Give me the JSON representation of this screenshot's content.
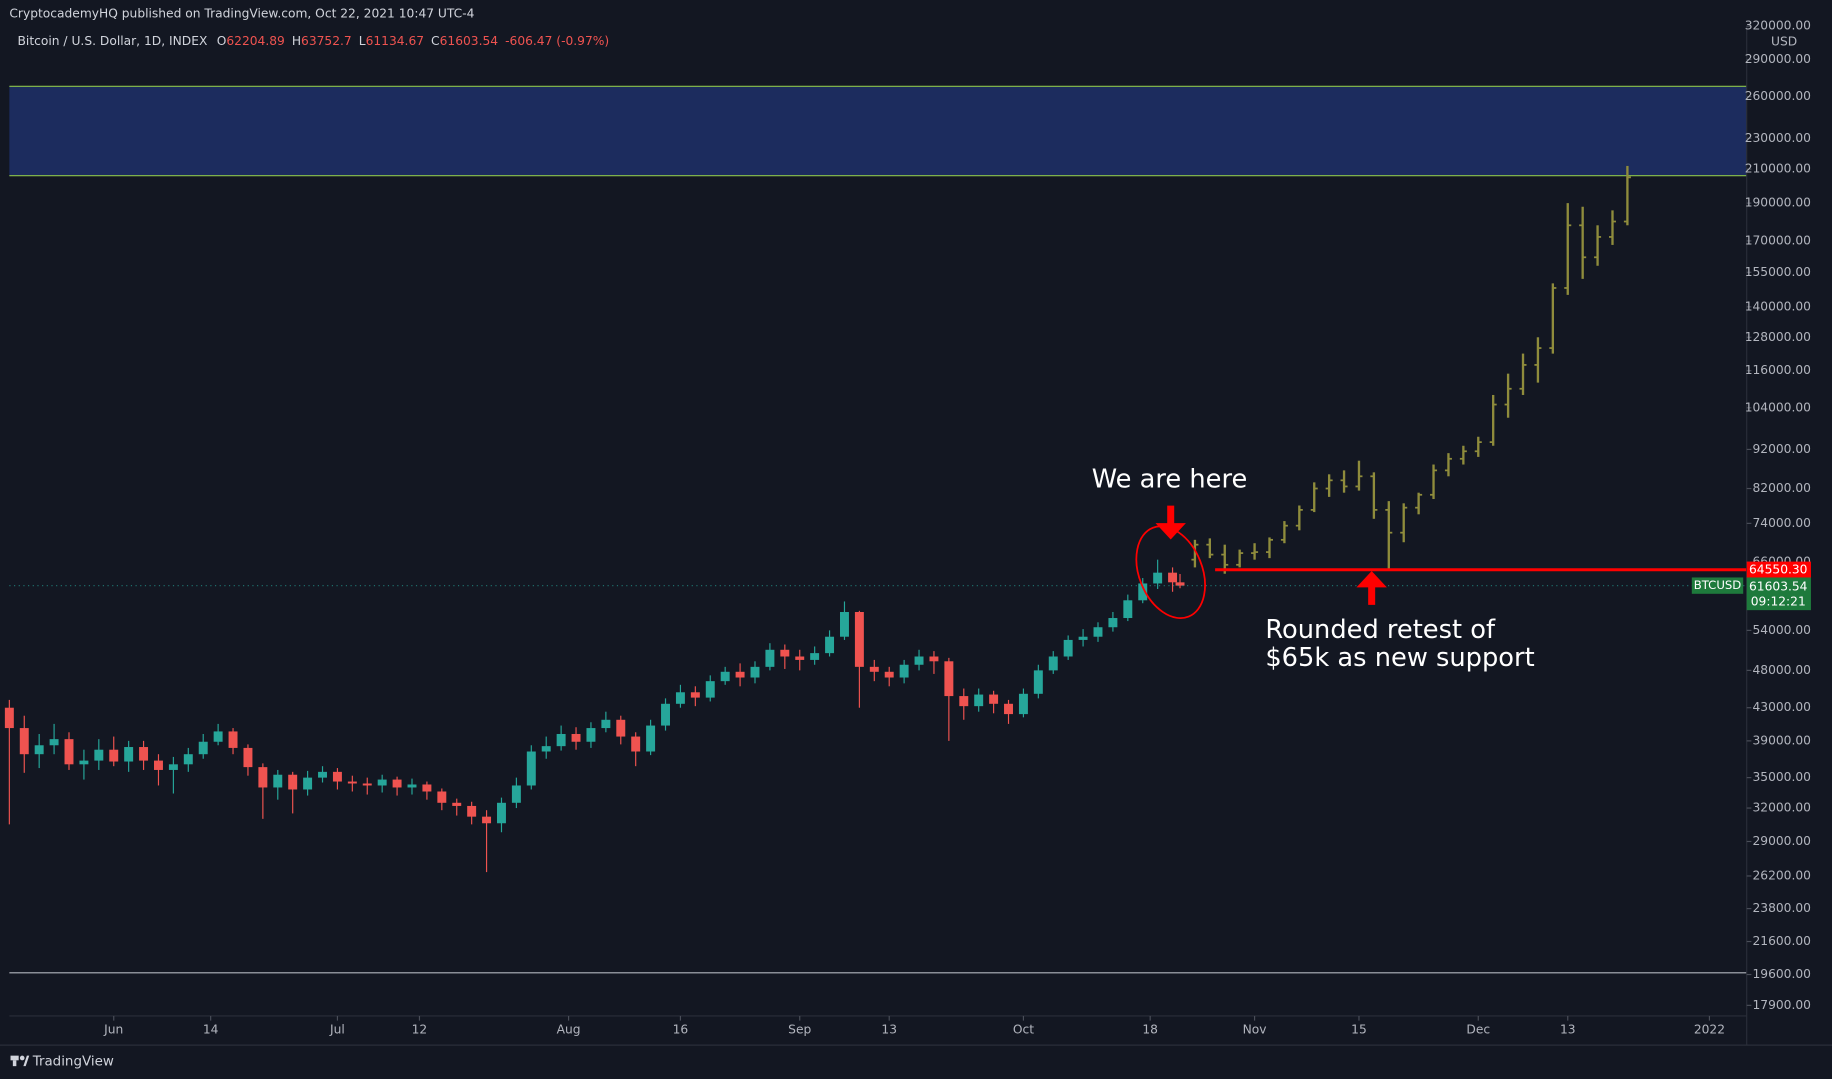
{
  "header": "CryptocademyHQ published on TradingView.com, Oct 22, 2021 10:47 UTC-4",
  "footer": "TradingView",
  "chart_data": {
    "type": "candlestick",
    "symbol": "Bitcoin / U.S. Dollar, 1D, INDEX",
    "legend_keys": [
      "O",
      "H",
      "L",
      "C"
    ],
    "change": "-606.47 (-0.97%)",
    "currency": "USD",
    "ticker": "BTCUSD",
    "countdown": "09:12:21",
    "log_scale": true,
    "grid": false,
    "background": "#131722",
    "xlim": [
      "2021-05-18",
      "2022-01-06"
    ],
    "ylim": [
      17350,
      320400
    ],
    "xticks": [
      {
        "value": "2021-06-01",
        "label": "Jun"
      },
      {
        "value": "2021-06-14",
        "label": "14"
      },
      {
        "value": "2021-07-01",
        "label": "Jul"
      },
      {
        "value": "2021-07-12",
        "label": "12"
      },
      {
        "value": "2021-08-01",
        "label": "Aug"
      },
      {
        "value": "2021-08-16",
        "label": "16"
      },
      {
        "value": "2021-09-01",
        "label": "Sep"
      },
      {
        "value": "2021-09-13",
        "label": "13"
      },
      {
        "value": "2021-10-01",
        "label": "Oct"
      },
      {
        "value": "2021-10-18",
        "label": "18"
      },
      {
        "value": "2021-11-01",
        "label": "Nov"
      },
      {
        "value": "2021-11-15",
        "label": "15"
      },
      {
        "value": "2021-12-01",
        "label": "Dec"
      },
      {
        "value": "2021-12-13",
        "label": "13"
      },
      {
        "value": "2022-01-01",
        "label": "2022"
      }
    ],
    "yticks": [
      {
        "value": 320000,
        "label": "320000.00"
      },
      {
        "value": 290000,
        "label": "290000.00"
      },
      {
        "value": 260000,
        "label": "260000.00"
      },
      {
        "value": 230000,
        "label": "230000.00"
      },
      {
        "value": 210000,
        "label": "210000.00"
      },
      {
        "value": 190000,
        "label": "190000.00"
      },
      {
        "value": 170000,
        "label": "170000.00"
      },
      {
        "value": 155000,
        "label": "155000.00"
      },
      {
        "value": 140000,
        "label": "140000.00"
      },
      {
        "value": 128000,
        "label": "128000.00"
      },
      {
        "value": 116000,
        "label": "116000.00"
      },
      {
        "value": 104000,
        "label": "104000.00"
      },
      {
        "value": 92000,
        "label": "92000.00"
      },
      {
        "value": 82000,
        "label": "82000.00"
      },
      {
        "value": 74000,
        "label": "74000.00"
      },
      {
        "value": 66000,
        "label": "66000.00"
      },
      {
        "value": 54000,
        "label": "54000.00"
      },
      {
        "value": 48000,
        "label": "48000.00"
      },
      {
        "value": 43000,
        "label": "43000.00"
      },
      {
        "value": 39000,
        "label": "39000.00"
      },
      {
        "value": 35000,
        "label": "35000.00"
      },
      {
        "value": 32000,
        "label": "32000.00"
      },
      {
        "value": 29000,
        "label": "29000.00"
      },
      {
        "value": 26200,
        "label": "26200.00"
      },
      {
        "value": 23800,
        "label": "23800.00"
      },
      {
        "value": 21600,
        "label": "21600.00"
      },
      {
        "value": 19600,
        "label": "19600.00"
      },
      {
        "value": 17900,
        "label": "17900.00"
      }
    ],
    "zone": [
      206000,
      268000
    ],
    "zone_color": "#1c2c5e",
    "zone_border_color": "#8bc34a",
    "floor_line": 19700,
    "support": {
      "value": 64550.3,
      "label": "64550.30",
      "color": "#ff0000"
    },
    "annotations": [
      "We are here",
      "Rounded retest of",
      "$65k as new support"
    ],
    "candles": {
      "up_color": "#26a69a",
      "down_color": "#ef5350",
      "x": [
        "2021-05-18",
        "2021-05-20",
        "2021-05-22",
        "2021-05-24",
        "2021-05-26",
        "2021-05-28",
        "2021-05-30",
        "2021-06-01",
        "2021-06-03",
        "2021-06-05",
        "2021-06-07",
        "2021-06-09",
        "2021-06-11",
        "2021-06-13",
        "2021-06-15",
        "2021-06-17",
        "2021-06-19",
        "2021-06-21",
        "2021-06-23",
        "2021-06-25",
        "2021-06-27",
        "2021-06-29",
        "2021-07-01",
        "2021-07-03",
        "2021-07-05",
        "2021-07-07",
        "2021-07-09",
        "2021-07-11",
        "2021-07-13",
        "2021-07-15",
        "2021-07-17",
        "2021-07-19",
        "2021-07-21",
        "2021-07-23",
        "2021-07-25",
        "2021-07-27",
        "2021-07-29",
        "2021-07-31",
        "2021-08-02",
        "2021-08-04",
        "2021-08-06",
        "2021-08-08",
        "2021-08-10",
        "2021-08-12",
        "2021-08-14",
        "2021-08-16",
        "2021-08-18",
        "2021-08-20",
        "2021-08-22",
        "2021-08-24",
        "2021-08-26",
        "2021-08-28",
        "2021-08-30",
        "2021-09-01",
        "2021-09-03",
        "2021-09-05",
        "2021-09-07",
        "2021-09-09",
        "2021-09-11",
        "2021-09-13",
        "2021-09-15",
        "2021-09-17",
        "2021-09-19",
        "2021-09-21",
        "2021-09-23",
        "2021-09-25",
        "2021-09-27",
        "2021-09-29",
        "2021-10-01",
        "2021-10-03",
        "2021-10-05",
        "2021-10-07",
        "2021-10-09",
        "2021-10-11",
        "2021-10-13",
        "2021-10-15",
        "2021-10-17",
        "2021-10-19",
        "2021-10-21",
        "2021-10-22"
      ],
      "open": [
        43000,
        40500,
        37500,
        38500,
        39200,
        36400,
        36800,
        38000,
        36700,
        38300,
        36800,
        35800,
        36400,
        37500,
        38900,
        40100,
        38200,
        36100,
        34000,
        35300,
        33800,
        35000,
        35600,
        34600,
        34400,
        34200,
        34800,
        34000,
        34300,
        33600,
        32500,
        32200,
        31200,
        30600,
        32500,
        34200,
        37800,
        38400,
        39800,
        38900,
        40500,
        41500,
        39500,
        37800,
        40800,
        43500,
        45000,
        44300,
        46500,
        47800,
        47000,
        48500,
        51000,
        50000,
        49500,
        50500,
        53000,
        57000,
        48500,
        47800,
        47000,
        48800,
        50000,
        49300,
        44500,
        43200,
        44700,
        43500,
        42200,
        44800,
        48000,
        50000,
        52500,
        53000,
        54500,
        56000,
        59000,
        62000,
        64000,
        62204.89
      ],
      "high": [
        44000,
        42000,
        39800,
        41000,
        40000,
        38000,
        39200,
        39500,
        39000,
        39000,
        37500,
        37200,
        38200,
        39800,
        41000,
        40500,
        38600,
        36500,
        35800,
        35600,
        35700,
        36200,
        36000,
        35200,
        35000,
        35300,
        35100,
        34900,
        34600,
        33900,
        32900,
        32600,
        31800,
        33000,
        35000,
        38500,
        39500,
        40800,
        40600,
        41200,
        42500,
        42000,
        40000,
        41500,
        44200,
        46000,
        45800,
        47300,
        48500,
        49000,
        49300,
        52000,
        51800,
        51000,
        51500,
        54000,
        58800,
        57200,
        49500,
        48500,
        49500,
        51000,
        50800,
        49800,
        45500,
        45500,
        45200,
        44000,
        45500,
        48800,
        50800,
        53200,
        54200,
        55300,
        57000,
        60000,
        63000,
        66500,
        65000,
        63752.7
      ],
      "low": [
        30500,
        35500,
        36000,
        37500,
        35800,
        34800,
        35800,
        36200,
        35600,
        35800,
        34200,
        33400,
        35600,
        37000,
        38500,
        37500,
        35200,
        31000,
        32800,
        31500,
        33200,
        34500,
        33800,
        33600,
        33300,
        33500,
        33200,
        33300,
        32800,
        31800,
        31300,
        30500,
        26500,
        29800,
        32000,
        33800,
        37000,
        37900,
        38000,
        38200,
        40000,
        38600,
        36200,
        37400,
        40200,
        43000,
        43200,
        43800,
        46000,
        45800,
        46200,
        48000,
        48200,
        48000,
        48800,
        50000,
        52500,
        43000,
        46500,
        45800,
        46200,
        48000,
        47500,
        39000,
        41500,
        42500,
        42300,
        41000,
        41800,
        44200,
        47500,
        49500,
        51500,
        52200,
        53800,
        55500,
        58500,
        61000,
        60500,
        61134.67
      ],
      "close": [
        40500,
        37500,
        38500,
        39200,
        36400,
        36800,
        38000,
        36700,
        38300,
        36800,
        35800,
        36400,
        37500,
        38900,
        40100,
        38200,
        36100,
        34000,
        35300,
        33800,
        35000,
        35600,
        34600,
        34400,
        34200,
        34800,
        34000,
        34300,
        33600,
        32500,
        32200,
        31200,
        30600,
        32500,
        34200,
        37800,
        38400,
        39800,
        38900,
        40500,
        41500,
        39500,
        37800,
        40800,
        43500,
        45000,
        44300,
        46500,
        47800,
        47000,
        48500,
        51000,
        50000,
        49500,
        50500,
        53000,
        57000,
        48500,
        47800,
        47000,
        48800,
        50000,
        49300,
        44500,
        43200,
        44700,
        43500,
        42200,
        44800,
        48000,
        50000,
        52500,
        53000,
        54500,
        56000,
        59000,
        62000,
        64000,
        62210.01,
        61603.54
      ]
    },
    "projection": {
      "color": "#8f8c3c",
      "x": [
        "2021-10-24",
        "2021-10-26",
        "2021-10-28",
        "2021-10-30",
        "2021-11-01",
        "2021-11-03",
        "2021-11-05",
        "2021-11-07",
        "2021-11-09",
        "2021-11-11",
        "2021-11-13",
        "2021-11-15",
        "2021-11-17",
        "2021-11-19",
        "2021-11-21",
        "2021-11-23",
        "2021-11-25",
        "2021-11-27",
        "2021-11-29",
        "2021-12-01",
        "2021-12-03",
        "2021-12-05",
        "2021-12-07",
        "2021-12-09",
        "2021-12-11",
        "2021-12-13",
        "2021-12-15",
        "2021-12-17",
        "2021-12-19",
        "2021-12-21"
      ],
      "open": [
        66500,
        69500,
        67500,
        65500,
        67800,
        68000,
        70500,
        73500,
        77000,
        82000,
        84000,
        82500,
        85000,
        77000,
        72000,
        77500,
        80500,
        86500,
        89500,
        91500,
        94000,
        105000,
        110000,
        118000,
        124000,
        148000,
        178000,
        162000,
        172000,
        180000
      ],
      "high": [
        70500,
        70800,
        69500,
        68500,
        69800,
        71000,
        74500,
        78000,
        83500,
        85500,
        86500,
        89000,
        86000,
        79000,
        78500,
        81000,
        88000,
        91000,
        93000,
        95500,
        108000,
        115000,
        122000,
        128000,
        150000,
        190000,
        188000,
        178000,
        186000,
        212000
      ],
      "low": [
        65000,
        66800,
        63800,
        65000,
        66500,
        66800,
        69800,
        72500,
        76500,
        80000,
        81000,
        81500,
        75000,
        64550,
        70000,
        76000,
        79500,
        85000,
        88000,
        90000,
        93000,
        101000,
        108000,
        112000,
        122000,
        145000,
        152000,
        158000,
        168000,
        178000
      ],
      "close": [
        69500,
        67500,
        65500,
        67800,
        68000,
        70500,
        73500,
        77000,
        82000,
        84000,
        82500,
        85000,
        77000,
        72000,
        77500,
        80500,
        86500,
        89500,
        91500,
        94000,
        105000,
        110000,
        118000,
        124000,
        148000,
        178000,
        162000,
        172000,
        180000,
        205000
      ]
    }
  }
}
